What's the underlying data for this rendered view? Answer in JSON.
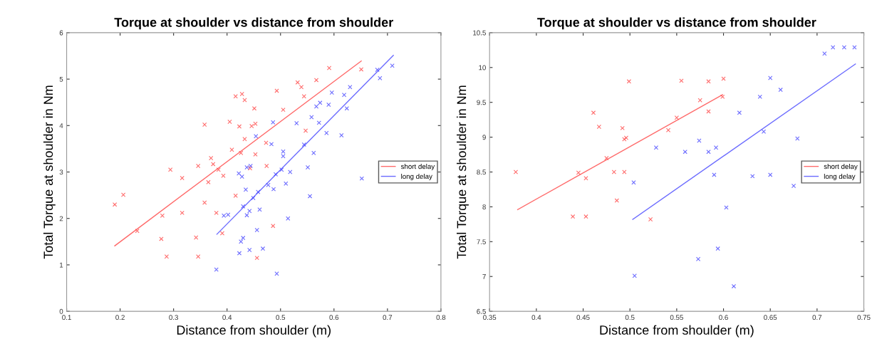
{
  "chart_data": [
    {
      "type": "scatter",
      "title": "Torque at shoulder vs distance from shoulder",
      "xlabel": "Distance from shoulder (m)",
      "ylabel": "Total Torque at shoulder in Nm",
      "xlim": [
        0.1,
        0.8
      ],
      "xticks": [
        0.1,
        0.2,
        0.3,
        0.4,
        0.5,
        0.6,
        0.7,
        0.8
      ],
      "ylim": [
        0,
        6
      ],
      "yticks": [
        0,
        1,
        2,
        3,
        4,
        5,
        6
      ],
      "legend": "center right",
      "grid": false,
      "series": [
        {
          "color": "#ff3b3b",
          "marker": "cross",
          "x": [
            0.19,
            0.206,
            0.232,
            0.279,
            0.277,
            0.287,
            0.294,
            0.316,
            0.316,
            0.342,
            0.346,
            0.346,
            0.358,
            0.358,
            0.365,
            0.37,
            0.374,
            0.384,
            0.38,
            0.391,
            0.393,
            0.405,
            0.409,
            0.416,
            0.423,
            0.428,
            0.433,
            0.426,
            0.416,
            0.433,
            0.451,
            0.453,
            0.446,
            0.453,
            0.456,
            0.474,
            0.493,
            0.486,
            0.473,
            0.443,
            0.505,
            0.532,
            0.539,
            0.544,
            0.547,
            0.567,
            0.591,
            0.651
          ],
          "values": [
            2.3,
            2.51,
            1.73,
            2.06,
            1.56,
            1.18,
            3.05,
            2.87,
            2.12,
            1.59,
            1.18,
            3.13,
            4.02,
            2.34,
            2.78,
            3.3,
            3.17,
            3.05,
            2.12,
            1.68,
            2.92,
            4.08,
            3.48,
            4.63,
            3.98,
            4.68,
            4.55,
            3.41,
            2.49,
            3.71,
            4.37,
            4.04,
            3.99,
            3.38,
            1.15,
            3.13,
            4.75,
            1.84,
            3.63,
            3.08,
            4.34,
            4.93,
            4.83,
            4.63,
            3.89,
            4.98,
            5.24,
            5.21
          ]
        },
        {
          "color": "#3b3bff",
          "marker": "cross",
          "x": [
            0.38,
            0.394,
            0.402,
            0.422,
            0.428,
            0.437,
            0.435,
            0.43,
            0.437,
            0.43,
            0.426,
            0.423,
            0.442,
            0.442,
            0.444,
            0.449,
            0.454,
            0.456,
            0.458,
            0.461,
            0.467,
            0.477,
            0.483,
            0.486,
            0.487,
            0.491,
            0.493,
            0.502,
            0.505,
            0.505,
            0.51,
            0.514,
            0.518,
            0.53,
            0.544,
            0.551,
            0.555,
            0.558,
            0.562,
            0.567,
            0.572,
            0.574,
            0.586,
            0.59,
            0.596,
            0.614,
            0.619,
            0.624,
            0.63,
            0.652,
            0.681,
            0.686,
            0.709
          ],
          "values": [
            0.9,
            2.06,
            2.08,
            2.97,
            2.9,
            3.1,
            2.62,
            2.26,
            2.07,
            1.58,
            1.5,
            1.25,
            2.16,
            1.32,
            3.13,
            2.44,
            3.77,
            1.75,
            2.57,
            2.19,
            1.35,
            2.72,
            3.6,
            4.07,
            2.63,
            2.95,
            0.81,
            3.05,
            3.44,
            3.34,
            2.75,
            2.0,
            3.0,
            4.05,
            3.59,
            3.1,
            2.48,
            4.18,
            3.41,
            4.41,
            4.06,
            4.49,
            3.84,
            4.45,
            4.71,
            3.79,
            4.66,
            4.37,
            4.83,
            2.86,
            5.2,
            5.02,
            5.29
          ]
        },
        {
          "type": "line",
          "name": "short delay",
          "color": "#ff6b6b",
          "x": [
            0.19,
            0.651
          ],
          "values": [
            1.41,
            5.39
          ]
        },
        {
          "type": "line",
          "name": "long delay",
          "color": "#6b6bff",
          "x": [
            0.381,
            0.711
          ],
          "values": [
            1.66,
            5.51
          ]
        }
      ]
    },
    {
      "type": "scatter",
      "title": "Torque at shoulder vs distance from shoulder",
      "xlabel": "Distance from shoulder (m)",
      "ylabel": "Total Torque at shoulder in Nm",
      "xlim": [
        0.35,
        0.75
      ],
      "xticks": [
        0.35,
        0.4,
        0.45,
        0.5,
        0.55,
        0.6,
        0.65,
        0.7,
        0.75
      ],
      "ylim": [
        6.5,
        10.5
      ],
      "yticks": [
        6.5,
        7,
        7.5,
        8,
        8.5,
        9,
        9.5,
        10,
        10.5
      ],
      "legend": "center right",
      "grid": false,
      "series": [
        {
          "color": "#ff3b3b",
          "marker": "cross",
          "x": [
            0.378,
            0.439,
            0.453,
            0.445,
            0.453,
            0.461,
            0.467,
            0.475,
            0.483,
            0.494,
            0.486,
            0.492,
            0.496,
            0.494,
            0.499,
            0.522,
            0.541,
            0.555,
            0.584,
            0.6,
            0.575,
            0.599,
            0.584,
            0.55
          ],
          "values": [
            8.5,
            7.86,
            7.86,
            8.49,
            8.41,
            9.35,
            9.15,
            8.7,
            8.5,
            8.5,
            8.09,
            9.13,
            8.99,
            8.97,
            9.8,
            7.82,
            9.1,
            9.81,
            9.8,
            9.84,
            9.53,
            9.58,
            9.37,
            9.28
          ]
        },
        {
          "color": "#3b3bff",
          "marker": "cross",
          "x": [
            0.528,
            0.504,
            0.505,
            0.708,
            0.717,
            0.729,
            0.74,
            0.65,
            0.661,
            0.639,
            0.617,
            0.643,
            0.679,
            0.574,
            0.559,
            0.584,
            0.592,
            0.59,
            0.631,
            0.65,
            0.675,
            0.603,
            0.594,
            0.573,
            0.611
          ],
          "values": [
            8.85,
            8.35,
            7.01,
            10.2,
            10.29,
            10.29,
            10.29,
            9.85,
            9.68,
            9.58,
            9.35,
            9.08,
            8.98,
            8.95,
            8.79,
            8.79,
            8.85,
            8.46,
            8.44,
            8.46,
            8.3,
            7.99,
            7.4,
            7.25,
            6.86
          ]
        },
        {
          "type": "line",
          "name": "short delay",
          "color": "#ff6b6b",
          "x": [
            0.38,
            0.599
          ],
          "values": [
            7.96,
            9.61
          ]
        },
        {
          "type": "line",
          "name": "long delay",
          "color": "#6b6bff",
          "x": [
            0.503,
            0.741
          ],
          "values": [
            7.82,
            10.05
          ]
        }
      ]
    }
  ]
}
